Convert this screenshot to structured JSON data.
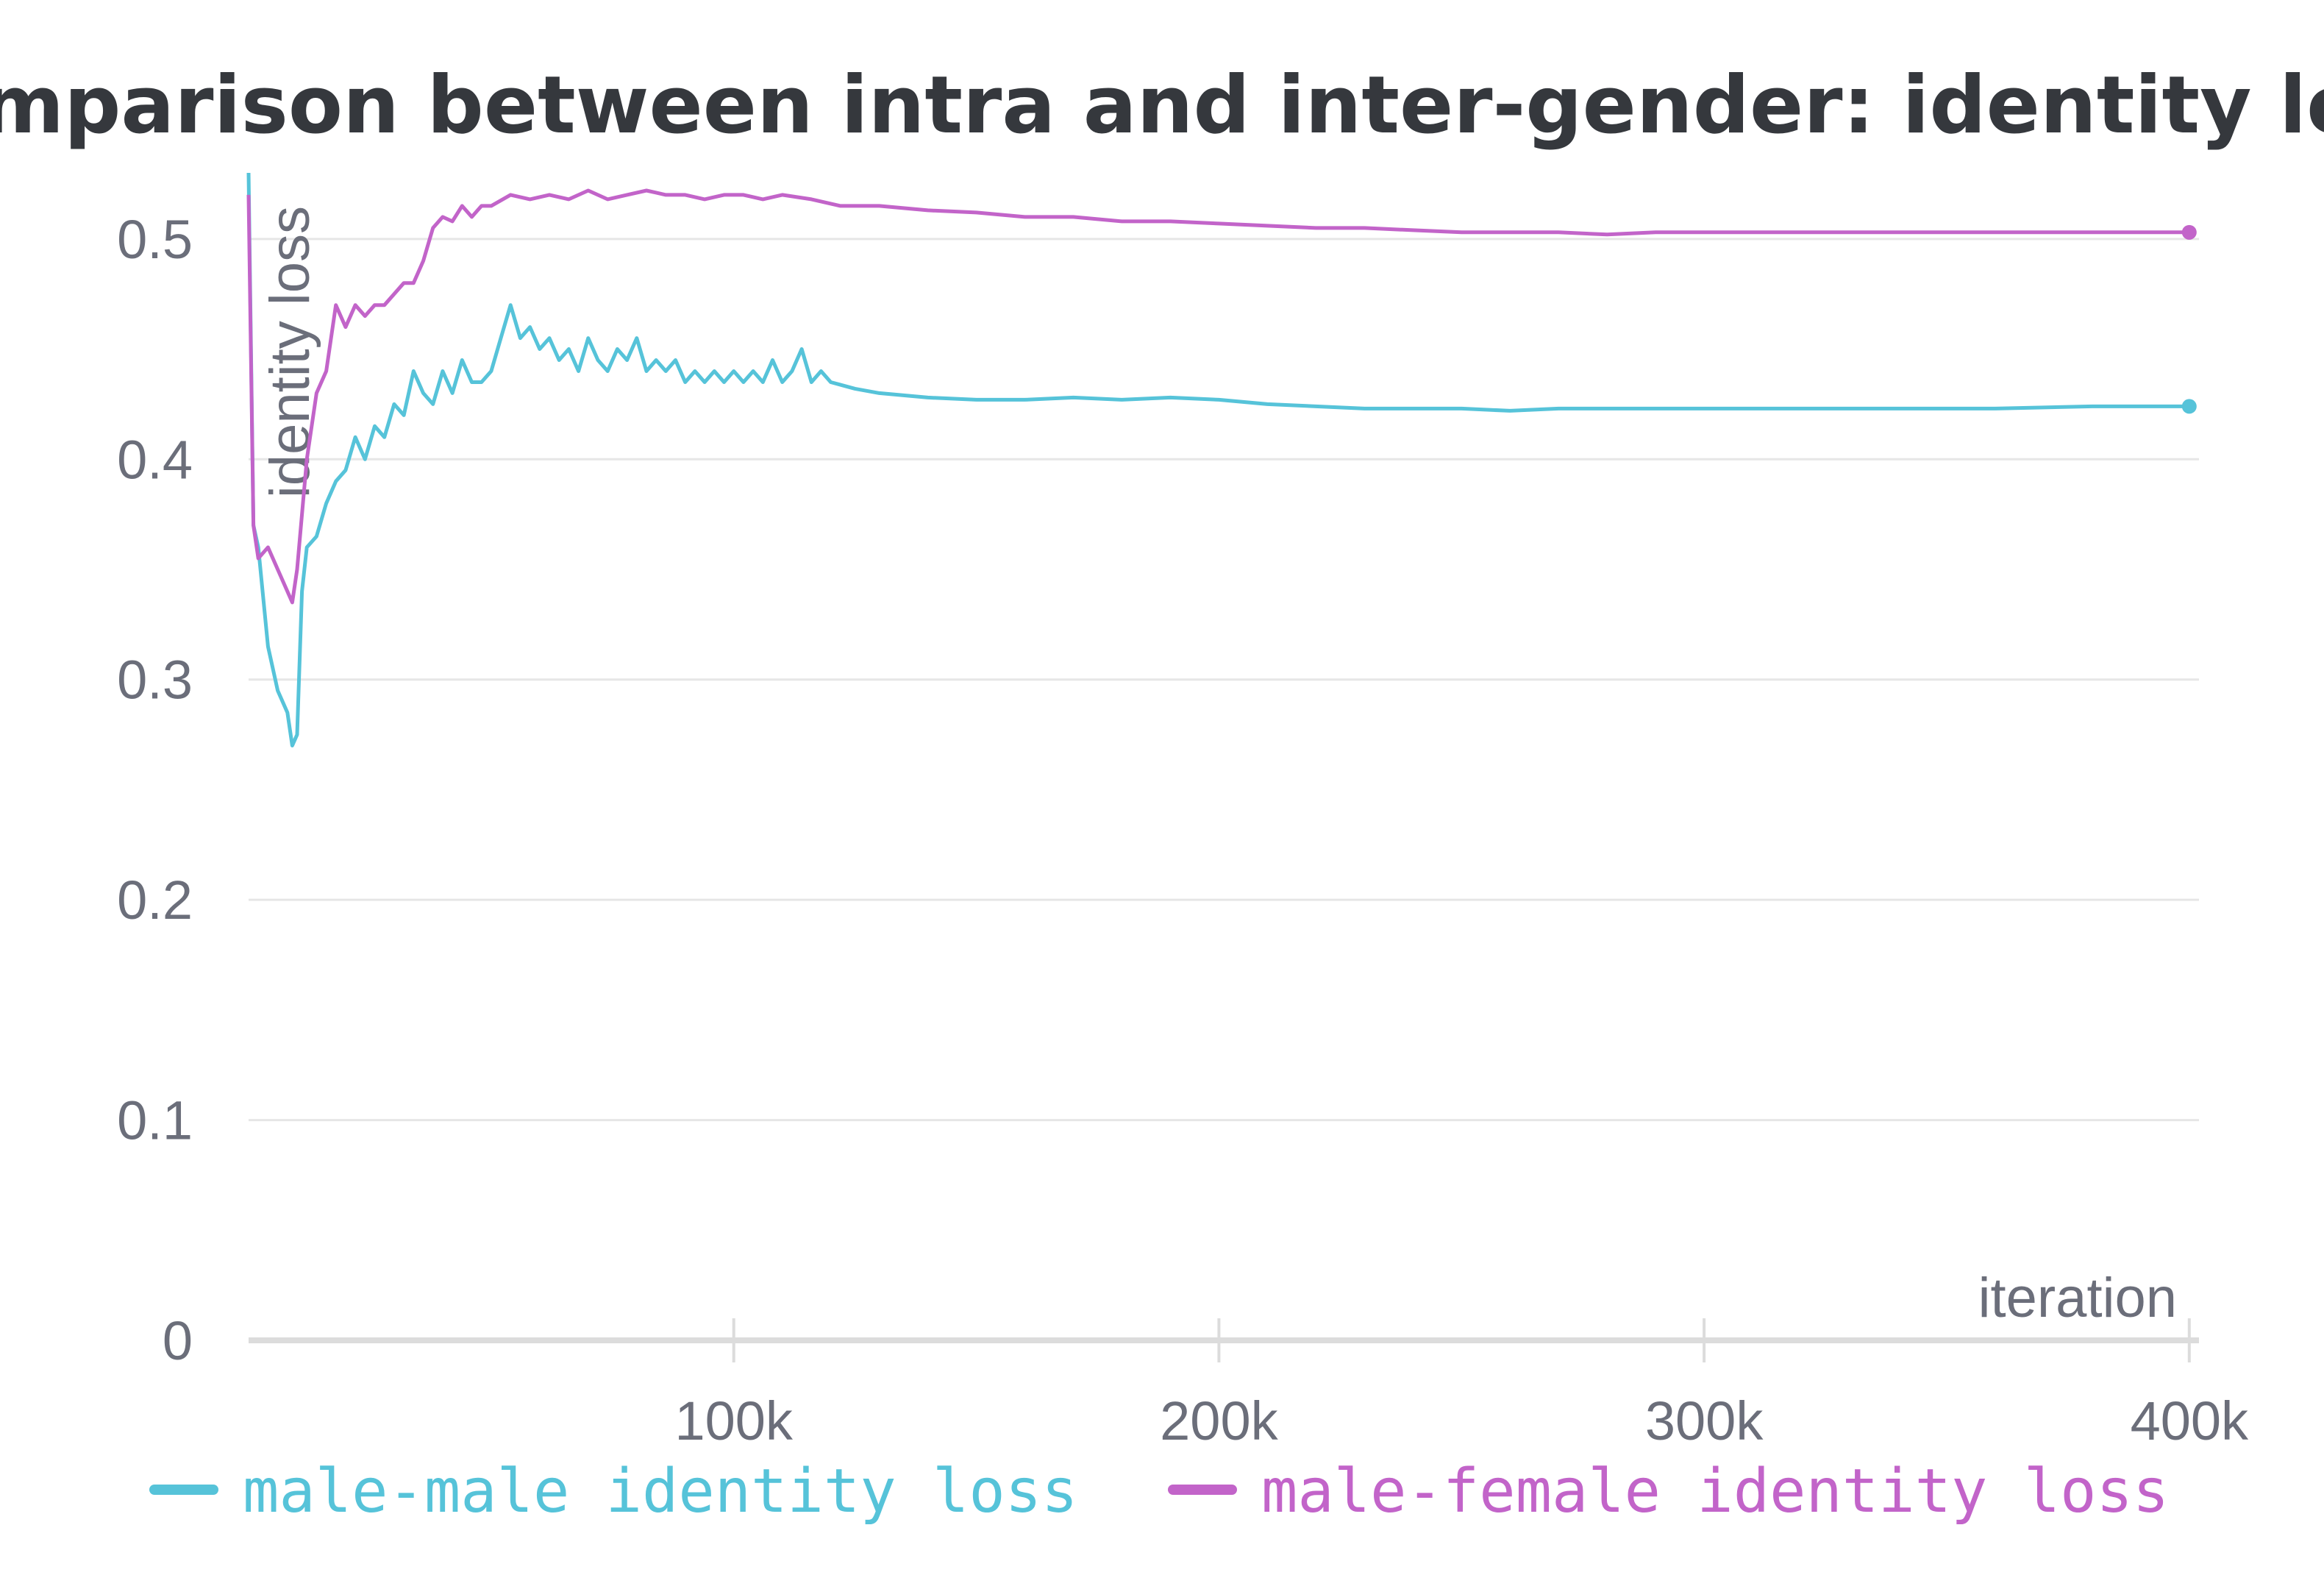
{
  "colors": {
    "male_male": "#56c3d9",
    "male_female": "#c264c9",
    "grid": "#e6e6e6",
    "axis": "#dcdcdc",
    "text": "#6b6e7a",
    "title": "#35383d"
  },
  "chart_data": {
    "type": "line",
    "title": "Comparison between intra and inter-gender: identity loss",
    "xlabel": "iteration",
    "ylabel": "identity loss",
    "xlim": [
      0,
      402000
    ],
    "ylim": [
      0,
      0.53
    ],
    "x_ticks": [
      {
        "value": 100000,
        "label": "100k"
      },
      {
        "value": 200000,
        "label": "200k"
      },
      {
        "value": 300000,
        "label": "300k"
      },
      {
        "value": 400000,
        "label": "400k"
      }
    ],
    "y_ticks": [
      {
        "value": 0,
        "label": "0"
      },
      {
        "value": 0.1,
        "label": "0.1"
      },
      {
        "value": 0.2,
        "label": "0.2"
      },
      {
        "value": 0.3,
        "label": "0.3"
      },
      {
        "value": 0.4,
        "label": "0.4"
      },
      {
        "value": 0.5,
        "label": "0.5"
      }
    ],
    "grid": true,
    "legend_position": "bottom",
    "series": [
      {
        "name": "male-male identity loss",
        "color": "#56c3d9",
        "x": [
          0,
          1000,
          2000,
          4000,
          6000,
          8000,
          9000,
          10000,
          11000,
          12000,
          14000,
          16000,
          18000,
          20000,
          22000,
          24000,
          26000,
          28000,
          30000,
          32000,
          34000,
          36000,
          38000,
          40000,
          42000,
          44000,
          46000,
          48000,
          50000,
          52000,
          54000,
          56000,
          58000,
          60000,
          62000,
          64000,
          66000,
          68000,
          70000,
          72000,
          74000,
          76000,
          78000,
          80000,
          82000,
          84000,
          86000,
          88000,
          90000,
          92000,
          94000,
          96000,
          98000,
          100000,
          102000,
          104000,
          106000,
          108000,
          110000,
          112000,
          114000,
          116000,
          118000,
          120000,
          125000,
          130000,
          140000,
          150000,
          160000,
          170000,
          180000,
          190000,
          200000,
          210000,
          220000,
          230000,
          240000,
          250000,
          260000,
          270000,
          280000,
          290000,
          300000,
          320000,
          340000,
          360000,
          380000,
          400000
        ],
        "values": [
          0.53,
          0.37,
          0.36,
          0.315,
          0.295,
          0.285,
          0.27,
          0.275,
          0.34,
          0.36,
          0.365,
          0.38,
          0.39,
          0.395,
          0.41,
          0.4,
          0.415,
          0.41,
          0.425,
          0.42,
          0.44,
          0.43,
          0.425,
          0.44,
          0.43,
          0.445,
          0.435,
          0.435,
          0.44,
          0.455,
          0.47,
          0.455,
          0.46,
          0.45,
          0.455,
          0.445,
          0.45,
          0.44,
          0.455,
          0.445,
          0.44,
          0.45,
          0.445,
          0.455,
          0.44,
          0.445,
          0.44,
          0.445,
          0.435,
          0.44,
          0.435,
          0.44,
          0.435,
          0.44,
          0.435,
          0.44,
          0.435,
          0.445,
          0.435,
          0.44,
          0.45,
          0.435,
          0.44,
          0.435,
          0.432,
          0.43,
          0.428,
          0.427,
          0.427,
          0.428,
          0.427,
          0.428,
          0.427,
          0.425,
          0.424,
          0.423,
          0.423,
          0.423,
          0.422,
          0.423,
          0.423,
          0.423,
          0.423,
          0.423,
          0.423,
          0.423,
          0.424,
          0.424
        ]
      },
      {
        "name": "male-female identity loss",
        "color": "#c264c9",
        "x": [
          0,
          1000,
          2000,
          4000,
          6000,
          8000,
          9000,
          10000,
          12000,
          14000,
          16000,
          18000,
          20000,
          22000,
          24000,
          26000,
          28000,
          30000,
          32000,
          34000,
          36000,
          38000,
          40000,
          42000,
          44000,
          46000,
          48000,
          50000,
          54000,
          58000,
          62000,
          66000,
          70000,
          74000,
          78000,
          82000,
          86000,
          90000,
          94000,
          98000,
          102000,
          106000,
          110000,
          116000,
          122000,
          130000,
          140000,
          150000,
          160000,
          170000,
          180000,
          190000,
          200000,
          210000,
          220000,
          230000,
          240000,
          250000,
          260000,
          270000,
          280000,
          290000,
          300000,
          320000,
          340000,
          360000,
          380000,
          400000
        ],
        "values": [
          0.52,
          0.37,
          0.355,
          0.36,
          0.35,
          0.34,
          0.335,
          0.35,
          0.4,
          0.43,
          0.44,
          0.47,
          0.46,
          0.47,
          0.465,
          0.47,
          0.47,
          0.475,
          0.48,
          0.48,
          0.49,
          0.505,
          0.51,
          0.508,
          0.515,
          0.51,
          0.515,
          0.515,
          0.52,
          0.518,
          0.52,
          0.518,
          0.522,
          0.518,
          0.52,
          0.522,
          0.52,
          0.52,
          0.518,
          0.52,
          0.52,
          0.518,
          0.52,
          0.518,
          0.515,
          0.515,
          0.513,
          0.512,
          0.51,
          0.51,
          0.508,
          0.508,
          0.507,
          0.506,
          0.505,
          0.505,
          0.504,
          0.503,
          0.503,
          0.503,
          0.502,
          0.503,
          0.503,
          0.503,
          0.503,
          0.503,
          0.503,
          0.503
        ]
      }
    ]
  }
}
